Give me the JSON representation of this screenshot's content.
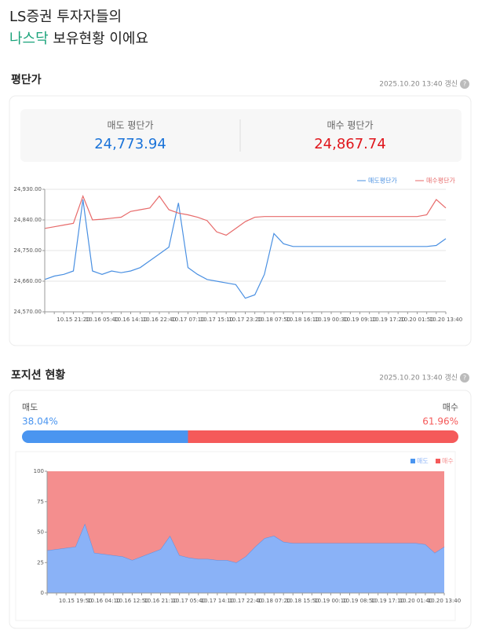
{
  "header": {
    "line1": "LS증권 투자자들의",
    "highlight": "나스닥",
    "line2": " 보유현황 이에요"
  },
  "avg_section": {
    "title": "평단가",
    "updated": "2025.10.20 13:40 갱신",
    "help_icon": "?",
    "sell_label": "매도 평단가",
    "sell_value": "24,773.94",
    "buy_label": "매수 평단가",
    "buy_value": "24,867.74"
  },
  "position_section": {
    "title": "포지션 현황",
    "updated": "2025.10.20 13:40 갱신",
    "help_icon": "?",
    "series": [
      {
        "name": "매도",
        "color": "#4a95f0",
        "value": 38.04,
        "value_label": "38.04%"
      },
      {
        "name": "매수",
        "color": "#f55a5a",
        "value": 61.96,
        "value_label": "61.96%"
      }
    ]
  },
  "chart_data": [
    {
      "type": "line",
      "grid": true,
      "categories": [
        null,
        null,
        null,
        "10.15 21:20",
        null,
        null,
        "10.16 05:40",
        null,
        null,
        "10.16 14:10",
        null,
        null,
        "10.16 22:40",
        null,
        null,
        "10.17 07:10",
        null,
        null,
        "10.17 15:10",
        null,
        null,
        "10.17 23:20",
        null,
        null,
        "10.18 07:50",
        null,
        null,
        "10.18 16:10",
        null,
        null,
        "10.19 00:30",
        null,
        null,
        "10.19 09:10",
        null,
        null,
        "10.19 17:20",
        null,
        null,
        "10.20 01:50",
        null,
        null,
        "10.20 13:40"
      ],
      "ylim": [
        24570,
        24930
      ],
      "yticks": [
        {
          "value": 24570,
          "label": "24,570.00"
        },
        {
          "value": 24660,
          "label": "24,660.00"
        },
        {
          "value": 24750,
          "label": "24,750.00"
        },
        {
          "value": 24840,
          "label": "24,840.00"
        },
        {
          "value": 24930,
          "label": "24,930.00"
        }
      ],
      "series": [
        {
          "name": "매도평단가",
          "color": "#4a90e2",
          "values": [
            24665,
            24675,
            24680,
            24690,
            24900,
            24690,
            24680,
            24690,
            24685,
            24690,
            24700,
            24720,
            24740,
            24760,
            24890,
            24700,
            24680,
            24665,
            24660,
            24655,
            24650,
            24610,
            24620,
            24680,
            24800,
            24770,
            24762,
            24762,
            24762,
            24762,
            24762,
            24762,
            24762,
            24762,
            24762,
            24762,
            24762,
            24762,
            24762,
            24762,
            24762,
            24765,
            24785
          ]
        },
        {
          "name": "매수평단가",
          "color": "#e76a6a",
          "values": [
            24815,
            24820,
            24825,
            24830,
            24910,
            24840,
            24842,
            24845,
            24848,
            24865,
            24870,
            24875,
            24910,
            24870,
            24860,
            24855,
            24848,
            24838,
            24805,
            24795,
            24815,
            24835,
            24848,
            24850,
            24850,
            24850,
            24850,
            24850,
            24850,
            24850,
            24850,
            24850,
            24850,
            24850,
            24850,
            24850,
            24850,
            24850,
            24850,
            24850,
            24855,
            24900,
            24875
          ]
        }
      ]
    },
    {
      "type": "stacked-area",
      "grid": false,
      "categories": [
        null,
        null,
        null,
        "10.15 19:50",
        null,
        null,
        "10.16 04:10",
        null,
        null,
        "10.16 12:50",
        null,
        null,
        "10.16 21:10",
        null,
        null,
        "10.17 05:40",
        null,
        null,
        "10.17 14:10",
        null,
        null,
        "10.17 22:40",
        null,
        null,
        "10.18 07:20",
        null,
        null,
        "10.18 15:50",
        null,
        null,
        "10.19 00:10",
        null,
        null,
        "10.19 08:50",
        null,
        null,
        "10.19 17:10",
        null,
        null,
        "10.20 01:40",
        null,
        null,
        "10.20 13:40"
      ],
      "ylim": [
        0,
        100
      ],
      "yticks": [
        0,
        25,
        50,
        75,
        100
      ],
      "series": [
        {
          "name": "매도",
          "color": "#8ab2f7",
          "values": [
            35,
            36,
            37,
            38,
            57,
            33,
            32,
            31,
            30,
            27,
            30,
            33,
            36,
            47,
            31,
            29,
            28,
            28,
            27,
            27,
            25,
            30,
            38,
            45,
            47,
            42,
            41,
            41,
            41,
            41,
            41,
            41,
            41,
            41,
            41,
            41,
            41,
            41,
            41,
            41,
            40,
            33,
            38
          ]
        },
        {
          "name": "매수",
          "color": "#f48e8e",
          "values": [
            65,
            64,
            63,
            62,
            43,
            67,
            68,
            69,
            70,
            73,
            70,
            67,
            64,
            53,
            69,
            71,
            72,
            72,
            73,
            73,
            75,
            70,
            62,
            55,
            53,
            58,
            59,
            59,
            59,
            59,
            59,
            59,
            59,
            59,
            59,
            59,
            59,
            59,
            59,
            59,
            60,
            67,
            62
          ]
        }
      ]
    }
  ]
}
